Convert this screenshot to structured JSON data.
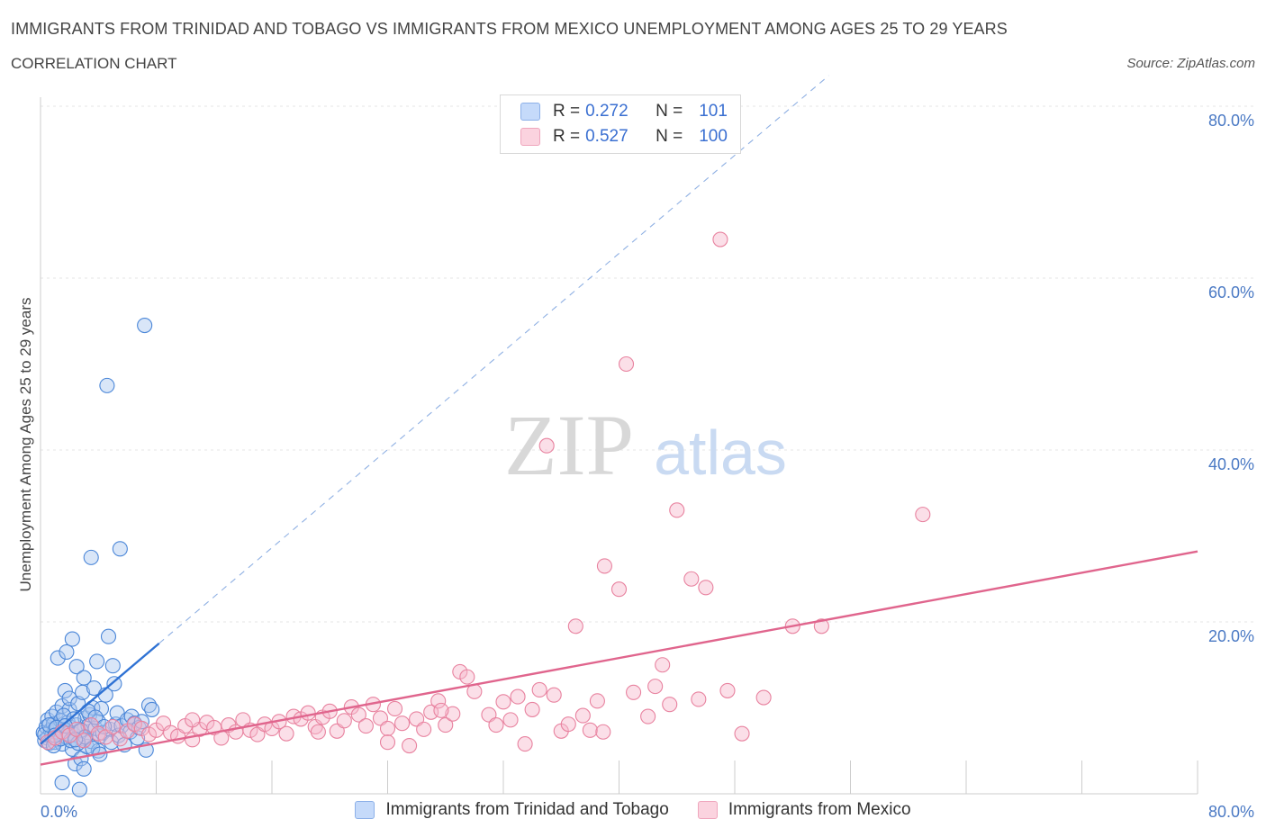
{
  "header": {
    "title": "IMMIGRANTS FROM TRINIDAD AND TOBAGO VS IMMIGRANTS FROM MEXICO UNEMPLOYMENT AMONG AGES 25 TO 29 YEARS",
    "subtitle": "CORRELATION CHART",
    "source": "Source: ZipAtlas.com"
  },
  "legend": {
    "rows": [
      {
        "r_label": "R =",
        "r_value": "0.272",
        "n_label": "N =",
        "n_value": "101",
        "color": "#aac8f0"
      },
      {
        "r_label": "R =",
        "r_value": "0.527",
        "n_label": "N =",
        "n_value": "100",
        "color": "#f6b9cc"
      }
    ]
  },
  "watermark": {
    "zip": "ZIP",
    "atlas": "atlas"
  },
  "chart_data": {
    "type": "scatter",
    "xlabel": "",
    "ylabel": "Unemployment Among Ages 25 to 29 years",
    "xlim": [
      0,
      80
    ],
    "ylim": [
      0,
      80
    ],
    "x_tick_labels": [
      "0.0%",
      "80.0%"
    ],
    "y_tick_labels": [
      "20.0%",
      "40.0%",
      "60.0%",
      "80.0%"
    ],
    "y_ticks": [
      20,
      40,
      60,
      80
    ],
    "grid": true,
    "legend_position": "top-center",
    "series": [
      {
        "name": "Immigrants from Trinidad and Tobago",
        "color": "#4a86d8",
        "fill": "#aac8f0",
        "trend_color": "#2f72d4",
        "trend": {
          "x0": 0,
          "y0": 5.8,
          "x1": 8.2,
          "y1": 17.5,
          "dashed_to_x": 54.5
        },
        "points": [
          [
            0.2,
            7.1
          ],
          [
            0.3,
            6.2
          ],
          [
            0.4,
            7.8
          ],
          [
            0.5,
            8.6
          ],
          [
            0.5,
            6.5
          ],
          [
            0.6,
            5.9
          ],
          [
            0.7,
            7.4
          ],
          [
            0.8,
            9.0
          ],
          [
            0.8,
            6.8
          ],
          [
            0.9,
            8.1
          ],
          [
            1.0,
            6.0
          ],
          [
            1.0,
            7.5
          ],
          [
            1.1,
            9.5
          ],
          [
            1.2,
            15.8
          ],
          [
            1.2,
            6.3
          ],
          [
            1.3,
            7.0
          ],
          [
            1.4,
            8.5
          ],
          [
            1.5,
            10.2
          ],
          [
            1.5,
            5.8
          ],
          [
            1.6,
            7.2
          ],
          [
            1.7,
            12.0
          ],
          [
            1.8,
            16.5
          ],
          [
            1.8,
            6.6
          ],
          [
            1.9,
            8.3
          ],
          [
            2.0,
            9.8
          ],
          [
            2.0,
            11.1
          ],
          [
            2.1,
            7.7
          ],
          [
            2.2,
            18.0
          ],
          [
            2.2,
            5.2
          ],
          [
            2.3,
            6.9
          ],
          [
            2.4,
            3.5
          ],
          [
            2.5,
            14.8
          ],
          [
            2.5,
            8.0
          ],
          [
            2.6,
            10.5
          ],
          [
            2.7,
            7.3
          ],
          [
            2.8,
            4.1
          ],
          [
            2.9,
            11.8
          ],
          [
            3.0,
            6.4
          ],
          [
            3.0,
            13.5
          ],
          [
            3.1,
            8.8
          ],
          [
            3.2,
            5.5
          ],
          [
            3.3,
            7.9
          ],
          [
            3.4,
            9.2
          ],
          [
            3.5,
            27.5
          ],
          [
            3.5,
            6.1
          ],
          [
            3.6,
            10.0
          ],
          [
            3.7,
            12.3
          ],
          [
            3.8,
            7.6
          ],
          [
            3.9,
            15.4
          ],
          [
            4.0,
            5.0
          ],
          [
            4.0,
            8.4
          ],
          [
            4.1,
            6.7
          ],
          [
            4.2,
            9.9
          ],
          [
            4.3,
            7.1
          ],
          [
            4.5,
            11.5
          ],
          [
            4.6,
            47.5
          ],
          [
            4.7,
            18.3
          ],
          [
            4.8,
            7.5
          ],
          [
            4.9,
            6.0
          ],
          [
            5.0,
            14.9
          ],
          [
            5.1,
            12.8
          ],
          [
            5.2,
            8.1
          ],
          [
            5.3,
            9.4
          ],
          [
            5.4,
            6.8
          ],
          [
            5.5,
            28.5
          ],
          [
            5.6,
            7.9
          ],
          [
            5.8,
            5.7
          ],
          [
            6.0,
            8.6
          ],
          [
            6.2,
            7.2
          ],
          [
            6.3,
            9.0
          ],
          [
            6.5,
            8.2
          ],
          [
            6.7,
            6.5
          ],
          [
            6.8,
            7.7
          ],
          [
            7.0,
            8.4
          ],
          [
            7.2,
            54.5
          ],
          [
            7.3,
            5.1
          ],
          [
            7.5,
            10.3
          ],
          [
            7.7,
            9.8
          ],
          [
            0.3,
            6.9
          ],
          [
            0.6,
            8.0
          ],
          [
            0.9,
            5.6
          ],
          [
            1.1,
            7.7
          ],
          [
            1.4,
            6.4
          ],
          [
            1.6,
            9.1
          ],
          [
            1.9,
            7.0
          ],
          [
            2.1,
            6.2
          ],
          [
            2.3,
            8.7
          ],
          [
            2.6,
            5.9
          ],
          [
            2.8,
            7.4
          ],
          [
            3.1,
            6.6
          ],
          [
            3.3,
            9.6
          ],
          [
            3.6,
            5.3
          ],
          [
            3.8,
            8.9
          ],
          [
            4.1,
            4.6
          ],
          [
            4.4,
            7.8
          ],
          [
            1.5,
            1.3
          ],
          [
            2.7,
            0.5
          ],
          [
            1.0,
            6.8
          ],
          [
            1.7,
            7.9
          ],
          [
            2.4,
            6.3
          ],
          [
            3.0,
            2.9
          ]
        ]
      },
      {
        "name": "Immigrants from Mexico",
        "color": "#e8829f",
        "fill": "#f6b9cc",
        "trend_color": "#e0658d",
        "trend": {
          "x0": 0,
          "y0": 3.4,
          "x1": 80,
          "y1": 28.2
        },
        "points": [
          [
            0.5,
            6.0
          ],
          [
            1.0,
            6.5
          ],
          [
            1.5,
            7.2
          ],
          [
            2.0,
            6.8
          ],
          [
            2.5,
            7.5
          ],
          [
            3.0,
            6.2
          ],
          [
            3.5,
            8.0
          ],
          [
            4.0,
            7.0
          ],
          [
            4.5,
            6.6
          ],
          [
            5.0,
            7.8
          ],
          [
            5.5,
            6.4
          ],
          [
            6.0,
            7.3
          ],
          [
            6.5,
            8.1
          ],
          [
            7.0,
            7.6
          ],
          [
            7.5,
            6.9
          ],
          [
            8.0,
            7.4
          ],
          [
            8.5,
            8.2
          ],
          [
            9.0,
            7.1
          ],
          [
            9.5,
            6.7
          ],
          [
            10.0,
            7.9
          ],
          [
            10.5,
            6.3
          ],
          [
            11.0,
            7.5
          ],
          [
            11.5,
            8.3
          ],
          [
            12.0,
            7.7
          ],
          [
            12.5,
            6.5
          ],
          [
            13.0,
            8.0
          ],
          [
            13.5,
            7.2
          ],
          [
            14.0,
            8.6
          ],
          [
            14.5,
            7.4
          ],
          [
            15.0,
            6.9
          ],
          [
            15.5,
            8.1
          ],
          [
            16.0,
            7.6
          ],
          [
            16.5,
            8.4
          ],
          [
            17.0,
            7.0
          ],
          [
            17.5,
            9.0
          ],
          [
            18.0,
            8.7
          ],
          [
            18.5,
            9.4
          ],
          [
            19.0,
            7.8
          ],
          [
            19.5,
            8.9
          ],
          [
            20.0,
            9.6
          ],
          [
            20.5,
            7.3
          ],
          [
            21.0,
            8.5
          ],
          [
            21.5,
            10.1
          ],
          [
            22.0,
            9.2
          ],
          [
            22.5,
            7.9
          ],
          [
            23.0,
            10.4
          ],
          [
            23.5,
            8.8
          ],
          [
            24.0,
            7.6
          ],
          [
            24.5,
            9.9
          ],
          [
            25.0,
            8.2
          ],
          [
            25.5,
            5.6
          ],
          [
            26.0,
            8.7
          ],
          [
            26.5,
            7.5
          ],
          [
            27.0,
            9.5
          ],
          [
            27.5,
            10.8
          ],
          [
            28.0,
            8.0
          ],
          [
            28.5,
            9.3
          ],
          [
            29.0,
            14.2
          ],
          [
            29.5,
            13.6
          ],
          [
            30.0,
            11.9
          ],
          [
            31.0,
            9.2
          ],
          [
            31.5,
            8.0
          ],
          [
            32.0,
            10.7
          ],
          [
            32.5,
            8.6
          ],
          [
            33.0,
            11.3
          ],
          [
            33.5,
            5.8
          ],
          [
            34.0,
            9.8
          ],
          [
            34.5,
            12.1
          ],
          [
            35.0,
            40.5
          ],
          [
            35.5,
            11.5
          ],
          [
            36.0,
            7.3
          ],
          [
            36.5,
            8.1
          ],
          [
            37.0,
            19.5
          ],
          [
            37.5,
            9.1
          ],
          [
            38.0,
            7.4
          ],
          [
            38.5,
            10.8
          ],
          [
            39.0,
            26.5
          ],
          [
            40.0,
            23.8
          ],
          [
            40.5,
            50.0
          ],
          [
            41.0,
            11.8
          ],
          [
            42.0,
            9.0
          ],
          [
            42.5,
            12.5
          ],
          [
            43.0,
            15.0
          ],
          [
            43.5,
            10.4
          ],
          [
            44.0,
            33.0
          ],
          [
            45.0,
            25.0
          ],
          [
            46.0,
            24.0
          ],
          [
            47.0,
            64.5
          ],
          [
            47.5,
            12.0
          ],
          [
            48.5,
            7.0
          ],
          [
            50.0,
            11.2
          ],
          [
            52.0,
            19.5
          ],
          [
            54.0,
            19.5
          ],
          [
            61.0,
            32.5
          ],
          [
            10.5,
            8.6
          ],
          [
            19.2,
            7.2
          ],
          [
            24.0,
            6.0
          ],
          [
            27.7,
            9.7
          ],
          [
            38.9,
            7.2
          ],
          [
            45.5,
            11.0
          ]
        ]
      }
    ]
  }
}
